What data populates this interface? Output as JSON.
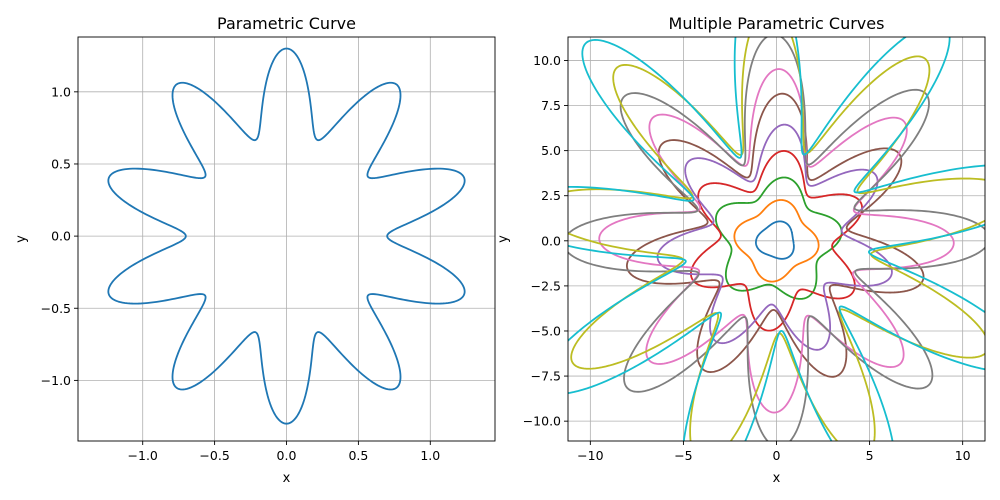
{
  "chart_data": [
    {
      "type": "line",
      "title": "Parametric Curve",
      "xlabel": "x",
      "ylabel": "y",
      "xlim": [
        -1.45,
        1.45
      ],
      "ylim": [
        -1.42,
        1.38
      ],
      "grid": true,
      "xticks": [
        -1.0,
        -0.5,
        0.0,
        0.5,
        1.0
      ],
      "xtick_labels": [
        "−1.0",
        "−0.5",
        "0.0",
        "0.5",
        "1.0"
      ],
      "yticks": [
        -1.0,
        -0.5,
        0.0,
        0.5,
        1.0
      ],
      "ytick_labels": [
        "−1.0",
        "−0.5",
        "0.0",
        "0.5",
        "1.0"
      ],
      "series": [
        {
          "color": "#1f77b4",
          "curve": {
            "radius": 1.0,
            "amp_sin": 0.0,
            "amp_cos": 0.3,
            "freq": 10,
            "rot_deg": 0
          }
        }
      ]
    },
    {
      "type": "line",
      "title": "Multiple Parametric Curves",
      "xlabel": "x",
      "ylabel": "y",
      "xlim": [
        -11.2,
        11.2
      ],
      "ylim": [
        -11.1,
        11.3
      ],
      "grid": true,
      "xticks": [
        -10,
        -5,
        0,
        5,
        10
      ],
      "xtick_labels": [
        "−10",
        "−5",
        "0",
        "5",
        "10"
      ],
      "yticks": [
        -10.0,
        -7.5,
        -5.0,
        -2.5,
        0.0,
        2.5,
        5.0,
        7.5,
        10.0
      ],
      "ytick_labels": [
        "−10.0",
        "−7.5",
        "−5.0",
        "−2.5",
        "0.0",
        "2.5",
        "5.0",
        "7.5",
        "10.0"
      ],
      "series": [
        {
          "color": "#1f77b4",
          "curve": {
            "radius": 1,
            "amp_sin": 0.1,
            "amp_cos": 0.05,
            "freq": 3,
            "rot_deg": 0
          }
        },
        {
          "color": "#ff7f0e",
          "curve": {
            "radius": 2,
            "amp_sin": 0.1,
            "amp_cos": 0.1,
            "freq": 4,
            "rot_deg": 8
          }
        },
        {
          "color": "#2ca02c",
          "curve": {
            "radius": 3,
            "amp_sin": 0.15,
            "amp_cos": 0.1,
            "freq": 5,
            "rot_deg": 15
          }
        },
        {
          "color": "#d62728",
          "curve": {
            "radius": 4,
            "amp_sin": 0.2,
            "amp_cos": 0.15,
            "freq": 6,
            "rot_deg": 22
          }
        },
        {
          "color": "#9467bd",
          "curve": {
            "radius": 5,
            "amp_sin": 0.25,
            "amp_cos": 0.15,
            "freq": 7,
            "rot_deg": 30
          }
        },
        {
          "color": "#8c564b",
          "curve": {
            "radius": 6,
            "amp_sin": 0.3,
            "amp_cos": 0.2,
            "freq": 7,
            "rot_deg": 40
          }
        },
        {
          "color": "#e377c2",
          "curve": {
            "radius": 7,
            "amp_sin": 0.3,
            "amp_cos": 0.2,
            "freq": 8,
            "rot_deg": 50
          }
        },
        {
          "color": "#7f7f7f",
          "curve": {
            "radius": 8,
            "amp_sin": 0.35,
            "amp_cos": 0.25,
            "freq": 8,
            "rot_deg": 60
          }
        },
        {
          "color": "#bcbd22",
          "curve": {
            "radius": 9,
            "amp_sin": 0.35,
            "amp_cos": 0.25,
            "freq": 9,
            "rot_deg": 70
          }
        },
        {
          "color": "#17becf",
          "curve": {
            "radius": 10,
            "amp_sin": 0.4,
            "amp_cos": 0.3,
            "freq": 9,
            "rot_deg": 80
          }
        }
      ]
    }
  ]
}
